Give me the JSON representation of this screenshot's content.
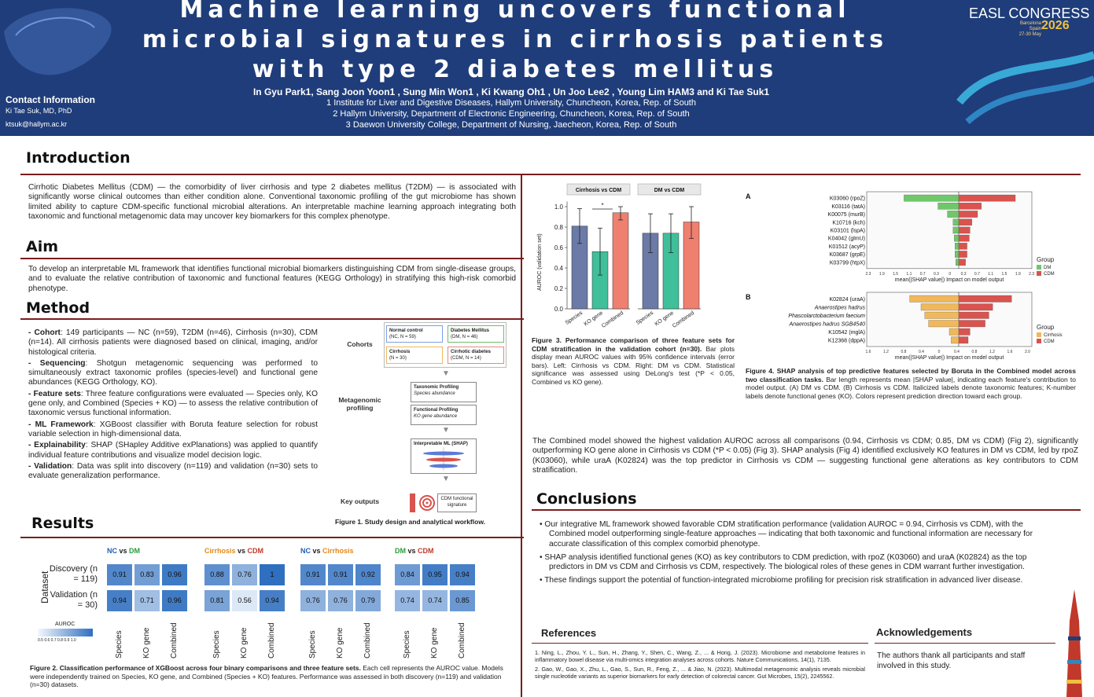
{
  "header": {
    "title_lines": [
      "Machine learning uncovers functional",
      "microbial signatures in cirrhosis patients",
      "with type 2 diabetes mellitus"
    ],
    "authors": "In Gyu Park1, Sang Joon Yoon1 , Sung Min Won1 , Ki Kwang Oh1 , Un Joo Lee2 , Young Lim HAM3 and Ki Tae Suk1",
    "affiliations": [
      "1 Institute for Liver and Digestive Diseases, Hallym University, Chuncheon, Korea, Rep. of South",
      "2 Hallym University, Department of Electronic Engineering, Chuncheon, Korea, Rep. of South",
      "3 Daewon University College, Department of Nursing, Jaecheon, Korea, Rep. of South"
    ],
    "contact_title": "Contact Information",
    "contact_name": "Ki Tae Suk, MD, PhD",
    "contact_email": "ktsuk@hallym.ac.kr",
    "logo_name": "EASL CONGRESS",
    "logo_place": "Barcelona Spain",
    "logo_date": "27-30 May",
    "logo_year": "2026"
  },
  "intro": {
    "title": "Introduction",
    "text": "Cirrhotic Diabetes Mellitus (CDM) — the comorbidity of liver cirrhosis and type 2 diabetes mellitus (T2DM) — is associated with significantly worse clinical outcomes than either condition alone. Conventional taxonomic profiling of the gut microbiome has shown limited ability to capture CDM-specific functional microbial alterations. An interpretable machine learning approach integrating both taxonomic and functional metagenomic data may uncover key biomarkers for this complex phenotype."
  },
  "aim": {
    "title": "Aim",
    "text": "To develop an interpretable ML framework that identifies functional microbial biomarkers distinguishing CDM from single-disease groups, and to evaluate the relative contribution of taxonomic and functional features (KEGG Orthology) in stratifying this high-risk comorbid phenotype."
  },
  "method": {
    "title": "Method",
    "items": [
      {
        "label": "Cohort",
        "text": ": 149 participants — NC (n=59), T2DM (n=46), Cirrhosis (n=30), CDM (n=14). All cirrhosis patients were diagnosed based on clinical, imaging, and/or histological criteria."
      },
      {
        "label": "Sequencing",
        "text": ": Shotgun metagenomic sequencing was performed to simultaneously extract taxonomic profiles (species-level) and functional gene abundances (KEGG Orthology, KO)."
      },
      {
        "label": "Feature sets",
        "text": ": Three feature configurations were evaluated — Species only, KO gene only, and Combined (Species + KO) — to assess the relative contribution of taxonomic versus functional information."
      },
      {
        "label": "ML Framework",
        "text": ": XGBoost classifier with Boruta feature selection for robust variable selection in high-dimensional data."
      },
      {
        "label": "Explainability",
        "text": ": SHAP (SHapley Additive exPlanations) was applied to quantify individual feature contributions and visualize model decision logic."
      },
      {
        "label": "Validation",
        "text": ": Data was split into discovery (n=119) and validation (n=30) sets to evaluate generalization performance."
      }
    ]
  },
  "workflow": {
    "cohorts_label": "Cohorts",
    "metagenomic_label": "Metagenomic profiling",
    "outputs_label": "Key outputs",
    "boxes": [
      {
        "title": "Normal control",
        "sub": "(NC, N = 59)"
      },
      {
        "title": "Diabetes Mellitus",
        "sub": "(DM, N = 46)"
      },
      {
        "title": "Cirrhosis",
        "sub": "(N = 30)"
      },
      {
        "title": "Cirrhotic diabetes",
        "sub": "(CDM, N = 14)"
      }
    ],
    "tax_title": "Taxonomic Profiling",
    "tax_sub": "Species abundance",
    "func_title": "Functional Profiling",
    "func_sub": "KO gene abundance",
    "shap_title": "Interpretable ML (SHAP)",
    "output_title": "CDM functional signature",
    "caption": "Figure 1. Study design and analytical workflow."
  },
  "results": {
    "title": "Results",
    "heatmap": {
      "row_labels": [
        "Discovery (n = 119)",
        "Validation (n = 30)"
      ],
      "y_title": "Dataset",
      "legend_title": "AUROC",
      "legend_ticks": "0.5 0.6 0.7 0.8 0.9 1.0",
      "col_labels": [
        "Species",
        "KO gene",
        "Combined"
      ],
      "panels": [
        {
          "t1": "NC",
          "vs": " vs ",
          "t2": "DM",
          "c1": "#1f5fb0",
          "c2": "#2a9d3a",
          "disc": [
            "0.91",
            "0.83",
            "0.96"
          ],
          "val": [
            "0.94",
            "0.71",
            "0.96"
          ]
        },
        {
          "t1": "Cirrhosis",
          "vs": " vs ",
          "t2": "CDM",
          "c1": "#e08a1e",
          "c2": "#c0392b",
          "disc": [
            "0.88",
            "0.76",
            "1"
          ],
          "val": [
            "0.81",
            "0.56",
            "0.94"
          ]
        },
        {
          "t1": "NC",
          "vs": " vs ",
          "t2": "Cirrhosis",
          "c1": "#1f5fb0",
          "c2": "#e08a1e",
          "disc": [
            "0.91",
            "0.91",
            "0.92"
          ],
          "val": [
            "0.76",
            "0.76",
            "0.79"
          ]
        },
        {
          "t1": "DM",
          "vs": " vs ",
          "t2": "CDM",
          "c1": "#2a9d3a",
          "c2": "#c0392b",
          "disc": [
            "0.84",
            "0.95",
            "0.94"
          ],
          "val": [
            "0.74",
            "0.74",
            "0.85"
          ]
        }
      ],
      "caption_b": "Figure 2. Classification performance of XGBoost across four binary comparisons and three feature sets.",
      "caption": " Each cell represents the AUROC value. Models were independently trained on Species, KO gene, and Combined (Species + KO) features. Performance was assessed in both discovery (n=119) and validation (n=30) datasets."
    },
    "fig3_caption_b": "Figure 3. Performance comparison of three feature sets for CDM stratification in the validation cohort (n=30).",
    "fig3_caption": " Bar plots display mean AUROC values with 95% confidence intervals (error bars). Left: Cirrhosis vs CDM. Right: DM vs CDM. Statistical significance was assessed using DeLong's test (*P < 0.05, Combined vs KO gene).",
    "fig4_caption_b": "Figure 4. SHAP analysis of top predictive features selected by Boruta in the Combined model across two classification tasks.",
    "fig4_caption": " Bar length represents mean |SHAP value|, indicating each feature's contribution to model output. (A) DM vs CDM. (B) Cirrhosis vs CDM. Italicized labels denote taxonomic features; K-number labels denote functional genes (KO). Colors represent prediction direction toward each group.",
    "summary": "The Combined model showed the highest validation AUROC across all comparisons (0.94, Cirrhosis vs CDM; 0.85, DM vs CDM) (Fig 2), significantly outperforming KO gene alone in Cirrhosis vs CDM (*P < 0.05) (Fig 3). SHAP analysis (Fig 4) identified exclusively KO features in DM vs CDM, led by rpoZ (K03060), while uraA (K02824) was the top predictor in Cirrhosis vs CDM — suggesting functional gene alterations as key contributors to CDM stratification."
  },
  "conclusions": {
    "title": "Conclusions",
    "items": [
      "Our integrative ML framework showed favorable CDM stratification performance (validation AUROC = 0.94, Cirrhosis vs CDM), with the Combined model outperforming single-feature approaches — indicating that both taxonomic and functional information are necessary for accurate classification of this complex comorbid phenotype.",
      "SHAP analysis identified functional genes (KO) as key contributors to CDM prediction, with rpoZ (K03060) and uraA (K02824) as the top predictors in DM vs CDM and Cirrhosis vs CDM, respectively. The biological roles of these genes in CDM warrant further investigation.",
      "These findings support the potential of function-integrated microbiome profiling for precision risk stratification in advanced liver disease."
    ]
  },
  "references": {
    "title": "References",
    "items": [
      "Ning, L., Zhou, Y. L., Sun, H., Zhang, Y., Shen, C., Wang, Z., ... & Hong, J. (2023). Microbiome and metabolome features in inflammatory bowel disease via multi-omics integration analyses across cohorts. Nature Communications, 14(1), 7135.",
      "Gao, W., Gao, X., Zhu, L., Gao, S., Sun, R., Feng, Z., ... & Jiao, N. (2023). Multimodal metagenomic analysis reveals microbial single nucleotide variants as superior biomarkers for early detection of colorectal cancer. Gut Microbes, 15(2), 2245562."
    ]
  },
  "acknowledgements": {
    "title": "Acknowledgements",
    "text": "The authors thank all participants and staff involved in this study."
  },
  "chart_data": [
    {
      "type": "bar",
      "title": "Cirrhosis vs CDM",
      "categories": [
        "Species",
        "KO gene",
        "Combined"
      ],
      "values": [
        0.81,
        0.56,
        0.94
      ],
      "err_low": [
        0.64,
        0.33,
        0.87
      ],
      "err_high": [
        0.98,
        0.79,
        1.0
      ],
      "colors": [
        "#6b7aa6",
        "#3fbf9a",
        "#ef7f6f"
      ],
      "ylabel": "AUROC (validation set)",
      "ylim": [
        0,
        1.0
      ],
      "yticks": [
        "0.0",
        "0.2",
        "0.4",
        "0.6",
        "0.8",
        "1.0"
      ],
      "annotation": "*"
    },
    {
      "type": "bar",
      "title": "DM vs CDM",
      "categories": [
        "Species",
        "KO gene",
        "Combined"
      ],
      "values": [
        0.74,
        0.74,
        0.85
      ],
      "err_low": [
        0.55,
        0.55,
        0.69
      ],
      "err_high": [
        0.93,
        0.93,
        1.0
      ],
      "colors": [
        "#6b7aa6",
        "#3fbf9a",
        "#ef7f6f"
      ],
      "ylim": [
        0,
        1.0
      ]
    },
    {
      "type": "bar",
      "panel": "A",
      "features": [
        "K03060 (rpoZ)",
        "K03116 (tatA)",
        "K00075 (murB)",
        "K10716 (kch)",
        "K03101 (lspA)",
        "K04042 (glmU)",
        "K01512 (acyP)",
        "K03687 (grpE)",
        "K03799 (htpX)"
      ],
      "DM": [
        1.45,
        0.55,
        0.3,
        0.15,
        0.15,
        0.12,
        0.1,
        0.1,
        0.08
      ],
      "CDM": [
        1.5,
        0.6,
        0.5,
        0.35,
        0.3,
        0.28,
        0.22,
        0.22,
        0.18
      ],
      "xlabel": "mean(|SHAP value|) Impact on model output",
      "xticks": [
        "2.3",
        "1.9",
        "1.5",
        "1.1",
        "0.7",
        "0.3",
        "0",
        "0.3",
        "0.7",
        "1.1",
        "1.5",
        "1.9",
        "2.3"
      ],
      "legend_title": "Group",
      "legend": [
        "DM",
        "CDM"
      ],
      "colors": [
        "#6fc76a",
        "#d9534f"
      ]
    },
    {
      "type": "bar",
      "panel": "B",
      "features": [
        "K02824 (uraA)",
        "Anaerostipes hadrus",
        "Phascolarctobacterium faecium",
        "Anaerostipes hadrus SGB4540",
        "K10542 (mglA)",
        "K12368 (dppA)"
      ],
      "Cirrhosis": [
        1.3,
        1.0,
        0.9,
        0.8,
        0.25,
        0.2
      ],
      "CDM": [
        1.4,
        0.9,
        0.8,
        0.7,
        0.3,
        0.25
      ],
      "xlabel": "mean(|SHAP value|) Impact on model output",
      "xticks": [
        "1.6",
        "1.2",
        "0.8",
        "0.4",
        "0",
        "0.4",
        "0.8",
        "1.2",
        "1.6",
        "2.0"
      ],
      "legend_title": "Group",
      "legend": [
        "Cirrhosis",
        "CDM"
      ],
      "colors": [
        "#f0b85a",
        "#d9534f"
      ]
    }
  ]
}
